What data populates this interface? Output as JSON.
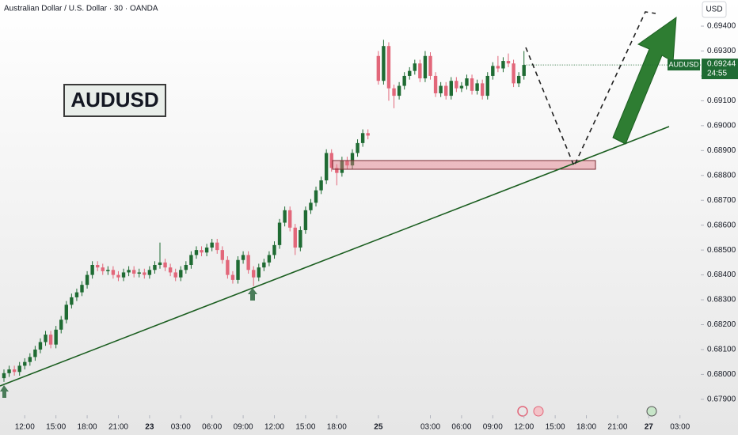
{
  "chart_data": {
    "type": "candlestick",
    "title": "Australian Dollar / U.S. Dollar · 30 · OANDA",
    "currency": "USD",
    "watermark_label": "AUDUSD",
    "symbol_tag": "AUDUSD",
    "current_price": 0.69244,
    "countdown": "24:55",
    "up_color": "#1f6b33",
    "down_color": "#e2677a",
    "xlim": [
      -0.76,
      134
    ],
    "ylim": [
      0.67836,
      0.69505
    ],
    "xticks": [
      {
        "value": 4,
        "label": "12:00"
      },
      {
        "value": 10,
        "label": "15:00"
      },
      {
        "value": 16,
        "label": "18:00"
      },
      {
        "value": 22,
        "label": "21:00"
      },
      {
        "value": 28,
        "label": "23"
      },
      {
        "value": 34,
        "label": "03:00"
      },
      {
        "value": 40,
        "label": "06:00"
      },
      {
        "value": 46,
        "label": "09:00"
      },
      {
        "value": 52,
        "label": "12:00"
      },
      {
        "value": 58,
        "label": "15:00"
      },
      {
        "value": 64,
        "label": "18:00"
      },
      {
        "value": 72,
        "label": "25"
      },
      {
        "value": 82,
        "label": "03:00"
      },
      {
        "value": 88,
        "label": "06:00"
      },
      {
        "value": 94,
        "label": "09:00"
      },
      {
        "value": 100,
        "label": "12:00"
      },
      {
        "value": 106,
        "label": "15:00"
      },
      {
        "value": 112,
        "label": "18:00"
      },
      {
        "value": 118,
        "label": "21:00"
      },
      {
        "value": 124,
        "label": "27"
      },
      {
        "value": 130,
        "label": "03:00"
      }
    ],
    "yticks": [
      {
        "value": 0.694,
        "label": "0.69400"
      },
      {
        "value": 0.693,
        "label": "0.69300"
      },
      {
        "value": 0.692,
        "label": "0.69200"
      },
      {
        "value": 0.691,
        "label": "0.69100"
      },
      {
        "value": 0.69,
        "label": "0.69000"
      },
      {
        "value": 0.689,
        "label": "0.68900"
      },
      {
        "value": 0.688,
        "label": "0.68800"
      },
      {
        "value": 0.687,
        "label": "0.68700"
      },
      {
        "value": 0.686,
        "label": "0.68600"
      },
      {
        "value": 0.685,
        "label": "0.68500"
      },
      {
        "value": 0.684,
        "label": "0.68400"
      },
      {
        "value": 0.683,
        "label": "0.68300"
      },
      {
        "value": 0.682,
        "label": "0.68200"
      },
      {
        "value": 0.681,
        "label": "0.68100"
      },
      {
        "value": 0.68,
        "label": "0.68000"
      },
      {
        "value": 0.679,
        "label": "0.67900"
      }
    ],
    "x": [
      0,
      1,
      2,
      3,
      4,
      5,
      6,
      7,
      8,
      9,
      10,
      11,
      12,
      13,
      14,
      15,
      16,
      17,
      18,
      19,
      20,
      21,
      22,
      23,
      24,
      25,
      26,
      27,
      28,
      29,
      30,
      31,
      32,
      33,
      34,
      35,
      36,
      37,
      38,
      39,
      40,
      41,
      42,
      43,
      44,
      45,
      46,
      47,
      48,
      49,
      50,
      51,
      52,
      53,
      54,
      55,
      56,
      57,
      58,
      59,
      60,
      61,
      62,
      63,
      64,
      65,
      66,
      67,
      68,
      69,
      70,
      72,
      73,
      74,
      75,
      76,
      77,
      78,
      79,
      80,
      81,
      82,
      83,
      84,
      85,
      86,
      87,
      88,
      89,
      90,
      91,
      92,
      93,
      94,
      95,
      96,
      97,
      98,
      99,
      100
    ],
    "open": [
      0.67985,
      0.68005,
      0.6802,
      0.6801,
      0.68035,
      0.6805,
      0.6807,
      0.681,
      0.6813,
      0.6816,
      0.6812,
      0.6818,
      0.6822,
      0.6828,
      0.6831,
      0.6833,
      0.6836,
      0.684,
      0.6844,
      0.6843,
      0.68415,
      0.6842,
      0.684,
      0.6839,
      0.6841,
      0.6842,
      0.68405,
      0.6841,
      0.684,
      0.6842,
      0.6844,
      0.6845,
      0.6843,
      0.6841,
      0.6839,
      0.6842,
      0.6844,
      0.6848,
      0.685,
      0.6849,
      0.6851,
      0.6853,
      0.685,
      0.6846,
      0.684,
      0.6838,
      0.6846,
      0.6848,
      0.6842,
      0.6839,
      0.6843,
      0.6845,
      0.6848,
      0.6852,
      0.6861,
      0.6866,
      0.6859,
      0.6851,
      0.6858,
      0.6866,
      0.6869,
      0.6874,
      0.6878,
      0.6889,
      0.6883,
      0.6881,
      0.6886,
      0.6884,
      0.6889,
      0.6893,
      0.6897,
      0.6928,
      0.6918,
      0.6932,
      0.6915,
      0.6912,
      0.6916,
      0.692,
      0.6922,
      0.6925,
      0.6919,
      0.6928,
      0.692,
      0.6913,
      0.6916,
      0.6912,
      0.6918,
      0.6915,
      0.6916,
      0.6919,
      0.6914,
      0.6917,
      0.6912,
      0.692,
      0.6924,
      0.6923,
      0.6926,
      0.6925,
      0.6917,
      0.692
    ],
    "high": [
      0.6802,
      0.68035,
      0.68035,
      0.6805,
      0.68065,
      0.68085,
      0.68115,
      0.68145,
      0.68175,
      0.68175,
      0.68195,
      0.68235,
      0.68295,
      0.68325,
      0.68345,
      0.68375,
      0.68415,
      0.68455,
      0.68455,
      0.68445,
      0.68435,
      0.68435,
      0.68415,
      0.68425,
      0.68435,
      0.68435,
      0.68425,
      0.68425,
      0.68435,
      0.68455,
      0.6853,
      0.68465,
      0.68445,
      0.68425,
      0.68435,
      0.68455,
      0.68495,
      0.68515,
      0.68515,
      0.68525,
      0.68545,
      0.68545,
      0.68515,
      0.68475,
      0.68415,
      0.68475,
      0.68495,
      0.68495,
      0.68435,
      0.68445,
      0.68465,
      0.68495,
      0.68535,
      0.68625,
      0.68675,
      0.68675,
      0.68605,
      0.68595,
      0.68675,
      0.68705,
      0.68755,
      0.68795,
      0.68905,
      0.68905,
      0.68845,
      0.68875,
      0.68875,
      0.68905,
      0.68945,
      0.68985,
      0.68985,
      0.693,
      0.69345,
      0.69335,
      0.69165,
      0.69175,
      0.69215,
      0.69235,
      0.69265,
      0.69265,
      0.693,
      0.69295,
      0.69215,
      0.69175,
      0.69175,
      0.69195,
      0.69195,
      0.69175,
      0.69205,
      0.69205,
      0.69185,
      0.69185,
      0.69215,
      0.69255,
      0.6928,
      0.69275,
      0.6929,
      0.69265,
      0.69215,
      0.693
    ],
    "low": [
      0.6797,
      0.6799,
      0.67995,
      0.67995,
      0.6802,
      0.68035,
      0.68055,
      0.68085,
      0.68115,
      0.68105,
      0.68105,
      0.68165,
      0.68205,
      0.68265,
      0.68295,
      0.68315,
      0.68345,
      0.68385,
      0.68415,
      0.684,
      0.684,
      0.68385,
      0.68375,
      0.68375,
      0.68395,
      0.6839,
      0.6839,
      0.68385,
      0.68385,
      0.68405,
      0.68425,
      0.68415,
      0.68395,
      0.68375,
      0.68375,
      0.68405,
      0.68425,
      0.68465,
      0.68475,
      0.68475,
      0.68495,
      0.68485,
      0.68445,
      0.68385,
      0.68365,
      0.68365,
      0.68445,
      0.68405,
      0.68355,
      0.68375,
      0.68415,
      0.68435,
      0.68465,
      0.68505,
      0.68595,
      0.68575,
      0.6848,
      0.68495,
      0.68565,
      0.68645,
      0.68675,
      0.68725,
      0.68765,
      0.68815,
      0.6876,
      0.68795,
      0.68825,
      0.68825,
      0.68875,
      0.68915,
      0.68945,
      0.69165,
      0.69165,
      0.691,
      0.6907,
      0.69105,
      0.69145,
      0.69185,
      0.69205,
      0.69175,
      0.69175,
      0.69185,
      0.69115,
      0.69115,
      0.69105,
      0.69105,
      0.69135,
      0.69135,
      0.69145,
      0.69125,
      0.69125,
      0.69105,
      0.69105,
      0.69185,
      0.69215,
      0.69215,
      0.69235,
      0.69155,
      0.69155,
      0.69185
    ],
    "close": [
      0.68005,
      0.6802,
      0.6801,
      0.68035,
      0.6805,
      0.6807,
      0.681,
      0.6813,
      0.6816,
      0.6812,
      0.6818,
      0.6822,
      0.6828,
      0.6831,
      0.6833,
      0.6836,
      0.684,
      0.6844,
      0.6843,
      0.68415,
      0.6842,
      0.684,
      0.6839,
      0.6841,
      0.6842,
      0.68405,
      0.6841,
      0.684,
      0.6842,
      0.6844,
      0.6845,
      0.6843,
      0.6841,
      0.6839,
      0.6842,
      0.6844,
      0.6848,
      0.685,
      0.6849,
      0.6851,
      0.6853,
      0.685,
      0.6846,
      0.684,
      0.6838,
      0.6846,
      0.6848,
      0.6842,
      0.6839,
      0.6843,
      0.6845,
      0.6848,
      0.6852,
      0.6861,
      0.6866,
      0.6859,
      0.6851,
      0.6858,
      0.6866,
      0.6869,
      0.6874,
      0.6878,
      0.6889,
      0.6883,
      0.6881,
      0.6886,
      0.6884,
      0.6889,
      0.6893,
      0.6897,
      0.6896,
      0.6918,
      0.6932,
      0.6915,
      0.6912,
      0.6916,
      0.692,
      0.6922,
      0.6925,
      0.6919,
      0.6928,
      0.692,
      0.6913,
      0.6916,
      0.6912,
      0.6918,
      0.6915,
      0.6916,
      0.6919,
      0.6914,
      0.6917,
      0.6912,
      0.692,
      0.6924,
      0.6923,
      0.6926,
      0.6925,
      0.6917,
      0.692,
      0.69244
    ]
  }
}
